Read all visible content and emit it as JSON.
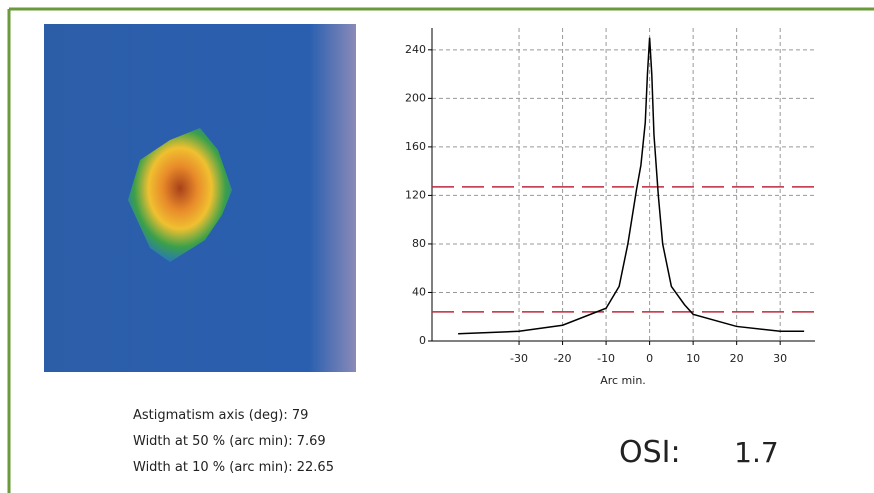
{
  "chart_data": {
    "type": "line",
    "x_label": "Arc min.",
    "x": [
      -44,
      -30,
      -20,
      -10,
      -7,
      -5,
      -3,
      -2,
      -1,
      -0.5,
      0,
      0.5,
      1,
      2,
      3,
      5,
      8,
      10,
      20,
      30,
      35.5
    ],
    "series": [
      {
        "color": "#000000",
        "values": [
          6,
          8,
          13,
          27,
          45,
          80,
          125,
          145,
          180,
          220,
          250,
          220,
          170,
          120,
          80,
          45,
          30,
          22,
          12,
          8,
          8
        ]
      }
    ],
    "reference_lines": [
      127,
      24
    ],
    "reference_color": "#c0283c",
    "xlim": [
      -50,
      38
    ],
    "xticks": [
      -30,
      -20,
      -10,
      0,
      10,
      20,
      30
    ],
    "ylim": [
      0,
      258
    ],
    "yticks": [
      0,
      40,
      80,
      120,
      160,
      200,
      240
    ],
    "grid": true
  },
  "stats": [
    {
      "label": "Astigmatism axis (deg):",
      "value": "79"
    },
    {
      "label": "Width at 50 % (arc min):",
      "value": "7.69"
    },
    {
      "label": "Width at 10 % (arc min):",
      "value": "22.65"
    }
  ],
  "osi": {
    "label": "OSI:",
    "value": "1.7"
  }
}
